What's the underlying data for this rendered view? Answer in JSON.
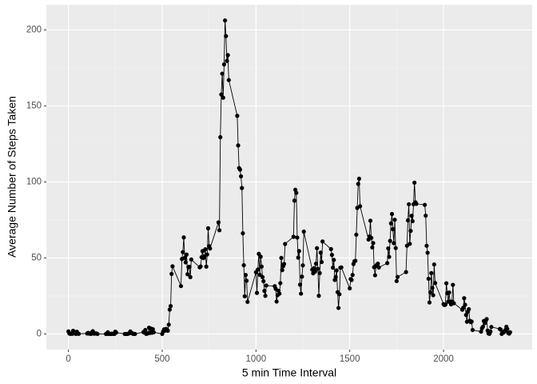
{
  "chart_data": {
    "type": "line",
    "xlabel": "5 min Time Interval",
    "ylabel": "Average Number of Steps Taken",
    "color": "#000000",
    "x": [
      0,
      5,
      10,
      15,
      20,
      25,
      30,
      35,
      40,
      45,
      50,
      55,
      100,
      105,
      110,
      115,
      120,
      125,
      130,
      135,
      140,
      145,
      150,
      155,
      200,
      205,
      210,
      215,
      220,
      225,
      230,
      235,
      240,
      245,
      250,
      255,
      300,
      305,
      310,
      315,
      320,
      325,
      330,
      335,
      340,
      345,
      350,
      355,
      400,
      405,
      410,
      415,
      420,
      425,
      430,
      435,
      440,
      445,
      450,
      455,
      500,
      505,
      510,
      515,
      520,
      525,
      530,
      535,
      540,
      545,
      550,
      555,
      600,
      605,
      610,
      615,
      620,
      625,
      630,
      635,
      640,
      645,
      650,
      655,
      700,
      705,
      710,
      715,
      720,
      725,
      730,
      735,
      740,
      745,
      750,
      755,
      800,
      805,
      810,
      815,
      820,
      825,
      830,
      835,
      840,
      845,
      850,
      855,
      900,
      905,
      910,
      915,
      920,
      925,
      930,
      935,
      940,
      945,
      950,
      955,
      1000,
      1005,
      1010,
      1015,
      1020,
      1025,
      1030,
      1035,
      1040,
      1045,
      1050,
      1055,
      1100,
      1105,
      1110,
      1115,
      1120,
      1125,
      1130,
      1135,
      1140,
      1145,
      1150,
      1155,
      1200,
      1205,
      1210,
      1215,
      1220,
      1225,
      1230,
      1235,
      1240,
      1245,
      1250,
      1255,
      1300,
      1305,
      1310,
      1315,
      1320,
      1325,
      1330,
      1335,
      1340,
      1345,
      1350,
      1355,
      1400,
      1405,
      1410,
      1415,
      1420,
      1425,
      1430,
      1435,
      1440,
      1445,
      1450,
      1455,
      1500,
      1505,
      1510,
      1515,
      1520,
      1525,
      1530,
      1535,
      1540,
      1545,
      1550,
      1555,
      1600,
      1605,
      1610,
      1615,
      1620,
      1625,
      1630,
      1635,
      1640,
      1645,
      1650,
      1655,
      1700,
      1705,
      1710,
      1715,
      1720,
      1725,
      1730,
      1735,
      1740,
      1745,
      1750,
      1755,
      1800,
      1805,
      1810,
      1815,
      1820,
      1825,
      1830,
      1835,
      1840,
      1845,
      1850,
      1855,
      1900,
      1905,
      1910,
      1915,
      1920,
      1925,
      1930,
      1935,
      1940,
      1945,
      1950,
      1955,
      2000,
      2005,
      2010,
      2015,
      2020,
      2025,
      2030,
      2035,
      2040,
      2045,
      2050,
      2055,
      2100,
      2105,
      2110,
      2115,
      2120,
      2125,
      2130,
      2135,
      2140,
      2145,
      2150,
      2155,
      2200,
      2205,
      2210,
      2215,
      2220,
      2225,
      2230,
      2235,
      2240,
      2245,
      2250,
      2255,
      2300,
      2305,
      2310,
      2315,
      2320,
      2325,
      2330,
      2335,
      2340,
      2345,
      2350,
      2355
    ],
    "values": [
      1.7,
      0.3,
      0.1,
      0.2,
      0.1,
      2.1,
      0.5,
      0.9,
      0,
      1.5,
      0.3,
      0.1,
      0.3,
      0.7,
      0.2,
      0.3,
      0,
      1.1,
      1.8,
      0.2,
      0.2,
      0.4,
      0.3,
      0,
      0,
      0,
      1.1,
      0,
      0,
      0.1,
      0,
      0.2,
      0,
      0,
      1.5,
      0.9,
      0,
      0,
      0,
      0,
      0.2,
      0.6,
      1.6,
      0.6,
      0.5,
      0.1,
      0,
      0,
      1.2,
      0.9,
      2.6,
      0,
      0.3,
      0.4,
      4.1,
      0.7,
      3.5,
      0.8,
      3.1,
      1.1,
      0,
      1.6,
      3,
      2.2,
      3.3,
      3,
      2.1,
      6.1,
      16,
      18.3,
      39.5,
      44.5,
      31.5,
      49.3,
      53.8,
      63.5,
      50,
      47.1,
      52.2,
      39.3,
      44,
      44.2,
      37.4,
      49,
      43.8,
      44.4,
      50.5,
      54.5,
      49.9,
      51,
      55.7,
      44.3,
      52.3,
      69.5,
      57.8,
      56.2,
      73.4,
      68.2,
      129.4,
      157.5,
      171.2,
      155.4,
      177.3,
      206.2,
      195.9,
      179.6,
      183.4,
      167,
      143.5,
      124,
      109.1,
      108.1,
      103.7,
      96,
      66.2,
      45.2,
      24.8,
      38.8,
      35,
      21.1,
      40.6,
      27,
      42.4,
      52.7,
      38.9,
      50.8,
      44.3,
      37.4,
      34.7,
      28.3,
      25.1,
      31.9,
      31.4,
      29.7,
      21.3,
      25.5,
      28.4,
      26.5,
      33.4,
      50,
      42,
      44.6,
      46,
      59.2,
      63.9,
      87.7,
      94.8,
      92.8,
      63.4,
      50.2,
      54.5,
      32.4,
      26.5,
      37.7,
      45.1,
      67.3,
      42.3,
      39.9,
      43.3,
      41,
      46.2,
      56.4,
      42.8,
      25.1,
      40,
      53.5,
      47.3,
      60.8,
      55.8,
      52,
      43.6,
      48.7,
      35.5,
      37.5,
      41.8,
      27.5,
      17.1,
      26.1,
      43.6,
      43.8,
      30,
      36.1,
      35.5,
      38.8,
      46,
      47.8,
      48.1,
      65.3,
      82.9,
      98.7,
      102.1,
      84,
      62.1,
      64.1,
      74.5,
      63.2,
      56.9,
      59.8,
      43.9,
      38.6,
      44.7,
      45.5,
      46.2,
      43.7,
      46.6,
      56.3,
      50.7,
      61.2,
      72.7,
      78.9,
      68.9,
      59.7,
      75.1,
      56.5,
      34.8,
      37.5,
      40.7,
      58,
      74.7,
      85.3,
      59.3,
      67.8,
      77.7,
      74.2,
      85.3,
      99.5,
      86.6,
      85.6,
      84.9,
      77.8,
      58,
      53.4,
      36.3,
      20.7,
      27.4,
      40,
      30.2,
      25.5,
      45.7,
      33.5,
      19.6,
      19,
      19.3,
      33.3,
      26.8,
      21.2,
      27.3,
      21.3,
      19.5,
      21.3,
      32.3,
      20.2,
      15.9,
      17.2,
      23.5,
      19.2,
      12.5,
      8,
      14.7,
      16.3,
      8.7,
      7.8,
      8.1,
      2.6,
      1.5,
      3.7,
      4.8,
      8.5,
      7.1,
      8.7,
      9.8,
      2.2,
      0.3,
      0.1,
      1.6,
      4.6,
      3.3,
      2.8,
      0,
      0.8,
      1,
      1.6,
      2.6,
      4.7,
      3.3,
      0.6,
      0.2,
      1.1
    ],
    "xlim": [
      -117.75,
      2472.75
    ],
    "xticks": [
      0,
      500,
      1000,
      1500,
      2000
    ],
    "ylim": [
      -10.3,
      216.5
    ],
    "yticks": [
      0,
      50,
      100,
      150,
      200
    ],
    "grid": true
  }
}
